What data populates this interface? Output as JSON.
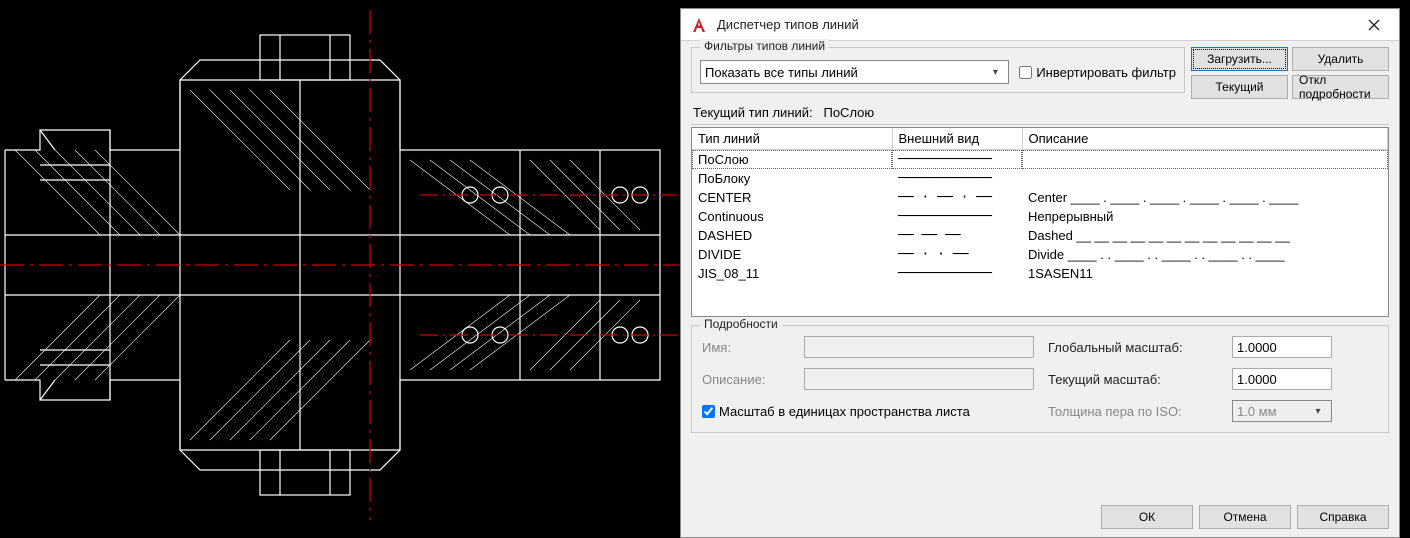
{
  "cad": {
    "bg_color": "#000000",
    "line_color": "#ffffff",
    "center_color": "#cc0000",
    "hatch_color": "#ffffff"
  },
  "dialog": {
    "title": "Диспетчер типов линий",
    "app_icon_letter": "A",
    "filters": {
      "legend": "Фильтры типов линий",
      "combo_value": "Показать все типы линий",
      "invert_label": "Инвертировать фильтр",
      "invert_checked": false
    },
    "buttons": {
      "load": "Загрузить...",
      "delete": "Удалить",
      "current": "Текущий",
      "toggle_details": "Откл подробности"
    },
    "current_line_label": "Текущий тип линий:",
    "current_line_value": "ПоСлою",
    "table": {
      "headers": {
        "name": "Тип линий",
        "preview": "Внешний вид",
        "desc": "Описание"
      },
      "col_widths": {
        "name": 200,
        "preview": 130,
        "desc": 340
      },
      "rows": [
        {
          "name": "ПоСлою",
          "preview": "────────────",
          "desc": "",
          "selected": true
        },
        {
          "name": "ПоБлоку",
          "preview": "────────────",
          "desc": ""
        },
        {
          "name": "CENTER",
          "preview": "── · ── · ──",
          "desc": "Center ____ . ____ . ____ . ____ . ____ . ____"
        },
        {
          "name": "Continuous",
          "preview": "────────────",
          "desc": "Непрерывный"
        },
        {
          "name": "DASHED",
          "preview": "──  ──  ──",
          "desc": "Dashed __ __ __ __ __ __ __ __ __ __ __ __"
        },
        {
          "name": "DIVIDE",
          "preview": "── · · ──",
          "desc": "Divide ____ . . ____ . . ____ . . ____ . . ____"
        },
        {
          "name": "JIS_08_11",
          "preview": "────────────",
          "desc": "1SASEN11"
        }
      ]
    },
    "details": {
      "legend": "Подробности",
      "name_label": "Имя:",
      "name_value": "",
      "desc_label": "Описание:",
      "desc_value": "",
      "global_scale_label": "Глобальный масштаб:",
      "global_scale_value": "1.0000",
      "current_scale_label": "Текущий масштаб:",
      "current_scale_value": "1.0000",
      "paper_units_label": "Масштаб в единицах пространства листа",
      "paper_units_checked": true,
      "iso_pen_label": "Толщина пера по ISO:",
      "iso_pen_value": "1.0 мм"
    },
    "footer": {
      "ok": "ОК",
      "cancel": "Отмена",
      "help": "Справка"
    }
  }
}
